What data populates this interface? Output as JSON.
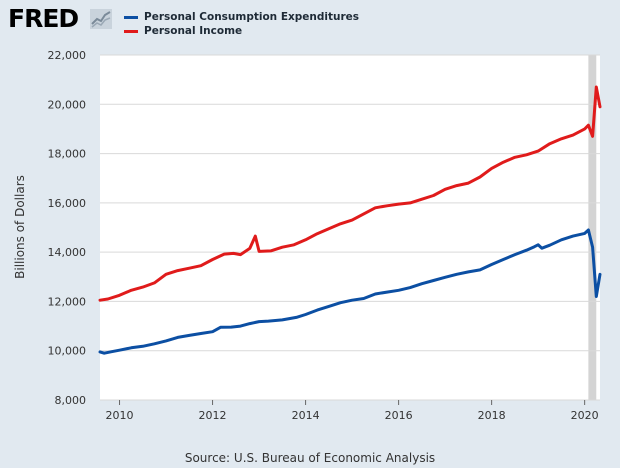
{
  "header": {
    "logo_text": "FRED",
    "logo_icon": "fred-chart-icon"
  },
  "source_text": "Source: U.S. Bureau of Economic Analysis",
  "colors": {
    "background": "#e1e9f0",
    "plot_background": "#ffffff",
    "pce": "#0c4fa3",
    "income": "#e01b1b",
    "recession_band": "#d4d4d4"
  },
  "chart_data": {
    "type": "line",
    "ylabel": "Billions of Dollars",
    "xlabel": "",
    "xlim": [
      2009.58,
      2020.33
    ],
    "ylim": [
      8000,
      22000
    ],
    "yticks": [
      8000,
      10000,
      12000,
      14000,
      16000,
      18000,
      20000,
      22000
    ],
    "ytick_labels": [
      "8,000",
      "10,000",
      "12,000",
      "14,000",
      "16,000",
      "18,000",
      "20,000",
      "22,000"
    ],
    "xticks": [
      2010,
      2012,
      2014,
      2016,
      2018,
      2020
    ],
    "xtick_labels": [
      "2010",
      "2012",
      "2014",
      "2016",
      "2018",
      "2020"
    ],
    "grid": "horizontal",
    "recession": [
      2020.08,
      2020.25
    ],
    "series": [
      {
        "name": "Personal Consumption Expenditures",
        "color": "#0c4fa3",
        "points": [
          [
            2009.58,
            9950
          ],
          [
            2009.67,
            9900
          ],
          [
            2009.83,
            9960
          ],
          [
            2010.0,
            10020
          ],
          [
            2010.25,
            10120
          ],
          [
            2010.5,
            10180
          ],
          [
            2010.75,
            10280
          ],
          [
            2011.0,
            10400
          ],
          [
            2011.25,
            10540
          ],
          [
            2011.5,
            10620
          ],
          [
            2011.75,
            10700
          ],
          [
            2012.0,
            10770
          ],
          [
            2012.17,
            10950
          ],
          [
            2012.4,
            10960
          ],
          [
            2012.6,
            11000
          ],
          [
            2012.8,
            11100
          ],
          [
            2013.0,
            11180
          ],
          [
            2013.2,
            11200
          ],
          [
            2013.5,
            11250
          ],
          [
            2013.8,
            11350
          ],
          [
            2014.0,
            11470
          ],
          [
            2014.25,
            11650
          ],
          [
            2014.5,
            11800
          ],
          [
            2014.75,
            11950
          ],
          [
            2015.0,
            12050
          ],
          [
            2015.25,
            12120
          ],
          [
            2015.5,
            12300
          ],
          [
            2015.75,
            12380
          ],
          [
            2016.0,
            12450
          ],
          [
            2016.25,
            12560
          ],
          [
            2016.5,
            12720
          ],
          [
            2016.75,
            12850
          ],
          [
            2017.0,
            12980
          ],
          [
            2017.25,
            13100
          ],
          [
            2017.5,
            13200
          ],
          [
            2017.75,
            13280
          ],
          [
            2018.0,
            13500
          ],
          [
            2018.25,
            13700
          ],
          [
            2018.5,
            13900
          ],
          [
            2018.75,
            14080
          ],
          [
            2018.92,
            14220
          ],
          [
            2019.0,
            14300
          ],
          [
            2019.08,
            14160
          ],
          [
            2019.25,
            14280
          ],
          [
            2019.5,
            14500
          ],
          [
            2019.75,
            14650
          ],
          [
            2020.0,
            14760
          ],
          [
            2020.08,
            14900
          ],
          [
            2020.17,
            14200
          ],
          [
            2020.25,
            12200
          ],
          [
            2020.33,
            13100
          ]
        ]
      },
      {
        "name": "Personal Income",
        "color": "#e01b1b",
        "points": [
          [
            2009.58,
            12050
          ],
          [
            2009.75,
            12100
          ],
          [
            2010.0,
            12250
          ],
          [
            2010.25,
            12450
          ],
          [
            2010.5,
            12580
          ],
          [
            2010.75,
            12750
          ],
          [
            2011.0,
            13100
          ],
          [
            2011.25,
            13250
          ],
          [
            2011.5,
            13350
          ],
          [
            2011.75,
            13450
          ],
          [
            2012.0,
            13700
          ],
          [
            2012.25,
            13920
          ],
          [
            2012.45,
            13950
          ],
          [
            2012.6,
            13900
          ],
          [
            2012.8,
            14150
          ],
          [
            2012.92,
            14650
          ],
          [
            2013.0,
            14030
          ],
          [
            2013.25,
            14050
          ],
          [
            2013.5,
            14200
          ],
          [
            2013.75,
            14300
          ],
          [
            2014.0,
            14500
          ],
          [
            2014.25,
            14750
          ],
          [
            2014.5,
            14950
          ],
          [
            2014.75,
            15150
          ],
          [
            2015.0,
            15300
          ],
          [
            2015.25,
            15550
          ],
          [
            2015.5,
            15800
          ],
          [
            2015.75,
            15880
          ],
          [
            2016.0,
            15950
          ],
          [
            2016.25,
            16000
          ],
          [
            2016.5,
            16150
          ],
          [
            2016.75,
            16300
          ],
          [
            2017.0,
            16550
          ],
          [
            2017.25,
            16700
          ],
          [
            2017.5,
            16800
          ],
          [
            2017.75,
            17050
          ],
          [
            2018.0,
            17400
          ],
          [
            2018.25,
            17650
          ],
          [
            2018.5,
            17850
          ],
          [
            2018.75,
            17950
          ],
          [
            2019.0,
            18100
          ],
          [
            2019.25,
            18400
          ],
          [
            2019.5,
            18600
          ],
          [
            2019.75,
            18750
          ],
          [
            2020.0,
            19000
          ],
          [
            2020.08,
            19150
          ],
          [
            2020.17,
            18700
          ],
          [
            2020.25,
            20700
          ],
          [
            2020.33,
            19900
          ]
        ]
      }
    ]
  }
}
